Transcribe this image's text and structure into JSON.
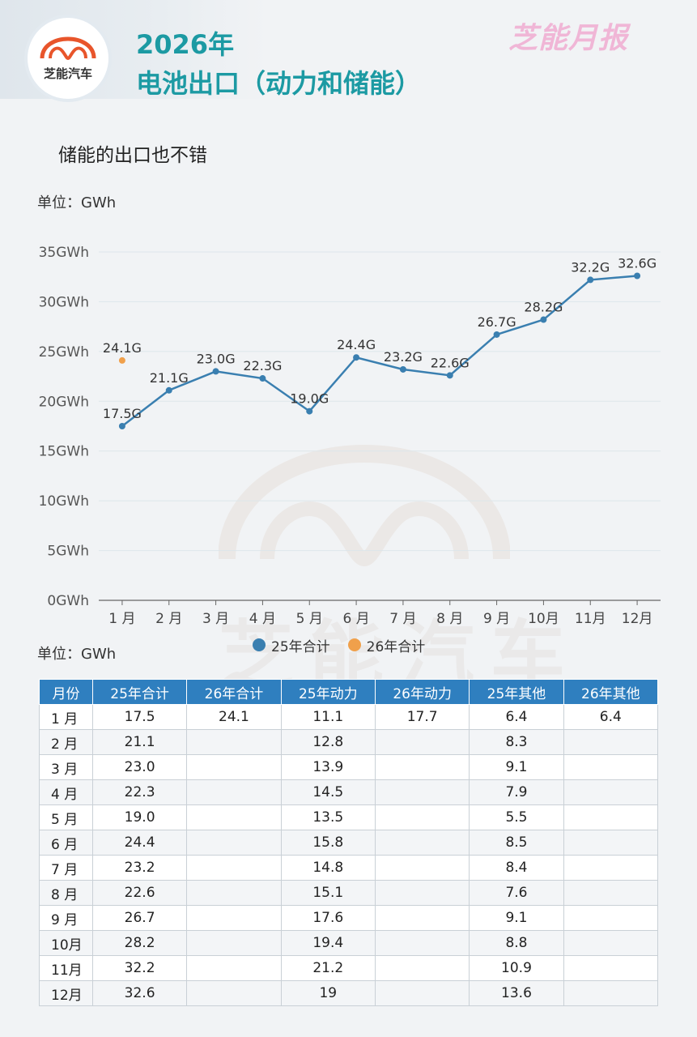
{
  "header": {
    "logo_text": "芝能汽车",
    "title_line1": "2026年",
    "title_line2": "电池出口（动力和储能）",
    "brand_mark": "芝能月报"
  },
  "subtitle": "储能的出口也不错",
  "unit_label_chart": "单位：GWh",
  "unit_label_table": "单位：GWh",
  "watermark_text": "芝能汽车",
  "colors": {
    "series_25": "#3a7fb0",
    "series_26": "#f0a04b",
    "title": "#1c9aa3",
    "table_header": "#2f7fbf"
  },
  "chart_data": {
    "type": "line",
    "categories": [
      "1 月",
      "2 月",
      "3 月",
      "4 月",
      "5 月",
      "6 月",
      "7 月",
      "8 月",
      "9 月",
      "10月",
      "11月",
      "12月"
    ],
    "y_ticks": [
      "0GWh",
      "5GWh",
      "10GWh",
      "15GWh",
      "20GWh",
      "25GWh",
      "30GWh",
      "35GWh"
    ],
    "ylim": [
      0,
      35
    ],
    "grid": true,
    "legend_position": "bottom-center",
    "series": [
      {
        "name": "25年合计",
        "values": [
          17.5,
          21.1,
          23.0,
          22.3,
          19.0,
          24.4,
          23.2,
          22.6,
          26.7,
          28.2,
          32.2,
          32.6
        ],
        "labels": [
          "17.5G",
          "21.1G",
          "23.0G",
          "22.3G",
          "19.0G",
          "24.4G",
          "23.2G",
          "22.6G",
          "26.7G",
          "28.2G",
          "32.2G",
          "32.6G"
        ],
        "color": "#3a7fb0"
      },
      {
        "name": "26年合计",
        "values": [
          24.1,
          null,
          null,
          null,
          null,
          null,
          null,
          null,
          null,
          null,
          null,
          null
        ],
        "labels": [
          "24.1G"
        ],
        "color": "#f0a04b"
      }
    ]
  },
  "table": {
    "headers": [
      "月份",
      "25年合计",
      "26年合计",
      "25年动力",
      "26年动力",
      "25年其他",
      "26年其他"
    ],
    "rows": [
      [
        "1 月",
        "17.5",
        "24.1",
        "11.1",
        "17.7",
        "6.4",
        "6.4"
      ],
      [
        "2 月",
        "21.1",
        "",
        "12.8",
        "",
        "8.3",
        ""
      ],
      [
        "3 月",
        "23.0",
        "",
        "13.9",
        "",
        "9.1",
        ""
      ],
      [
        "4 月",
        "22.3",
        "",
        "14.5",
        "",
        "7.9",
        ""
      ],
      [
        "5 月",
        "19.0",
        "",
        "13.5",
        "",
        "5.5",
        ""
      ],
      [
        "6 月",
        "24.4",
        "",
        "15.8",
        "",
        "8.5",
        ""
      ],
      [
        "7 月",
        "23.2",
        "",
        "14.8",
        "",
        "8.4",
        ""
      ],
      [
        "8 月",
        "22.6",
        "",
        "15.1",
        "",
        "7.6",
        ""
      ],
      [
        "9 月",
        "26.7",
        "",
        "17.6",
        "",
        "9.1",
        ""
      ],
      [
        "10月",
        "28.2",
        "",
        "19.4",
        "",
        "8.8",
        ""
      ],
      [
        "11月",
        "32.2",
        "",
        "21.2",
        "",
        "10.9",
        ""
      ],
      [
        "12月",
        "32.6",
        "",
        "19",
        "",
        "13.6",
        ""
      ]
    ]
  }
}
